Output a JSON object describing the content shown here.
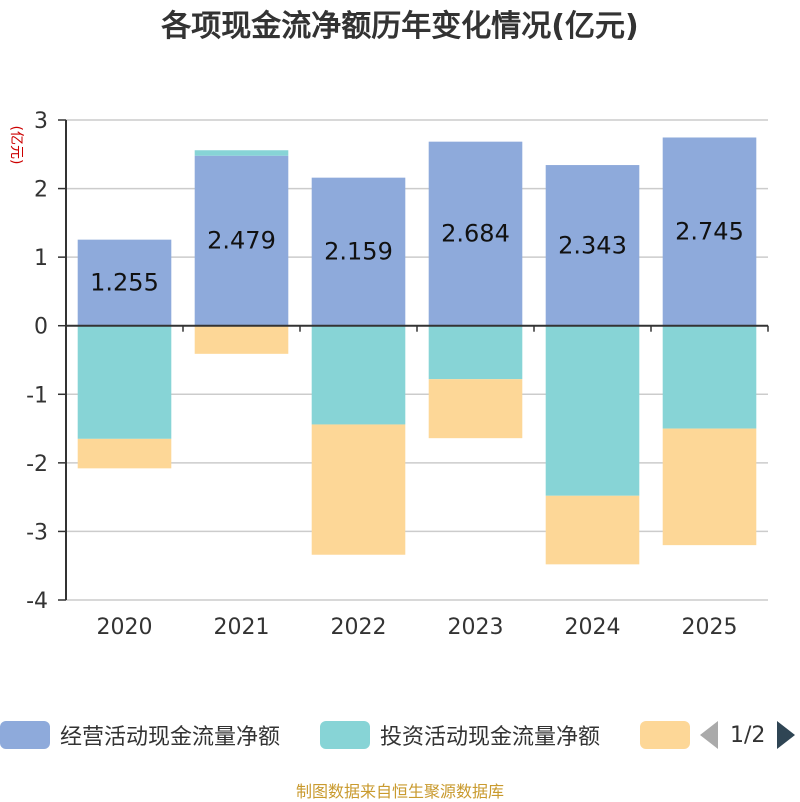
{
  "title": "各项现金流净额历年变化情况(亿元)",
  "chart_data": {
    "type": "bar",
    "stacked": true,
    "title": "各项现金流净额历年变化情况(亿元)",
    "ylabel": "(亿元)",
    "xlabel": "",
    "ylim": [
      -4,
      3
    ],
    "yticks": [
      3,
      2,
      1,
      0,
      -1,
      -2,
      -3,
      -4
    ],
    "categories": [
      "2020",
      "2021",
      "2022",
      "2023",
      "2024",
      "2025"
    ],
    "series": [
      {
        "name": "经营活动现金流量净额",
        "color": "#8eaadb",
        "values": [
          1.255,
          2.479,
          2.159,
          2.684,
          2.343,
          2.745
        ],
        "labels": [
          "1.255",
          "2.479",
          "2.159",
          "2.684",
          "2.343",
          "2.745"
        ]
      },
      {
        "name": "投资活动现金流量净额",
        "color": "#87d4d6",
        "values": [
          -1.65,
          0.08,
          -1.44,
          -0.78,
          -2.48,
          -1.5
        ]
      },
      {
        "name": "",
        "color": "#fdd797",
        "values": [
          -0.43,
          -0.41,
          -1.9,
          -0.86,
          -1.0,
          -1.7
        ]
      }
    ],
    "legend_position": "bottom"
  },
  "legend": {
    "items": [
      {
        "label": "经营活动现金流量净额",
        "color": "#8eaadb"
      },
      {
        "label": "投资活动现金流量净额",
        "color": "#87d4d6"
      },
      {
        "label": "",
        "color": "#fdd797"
      }
    ],
    "page": "1/2"
  },
  "source": "制图数据来自恒生聚源数据库"
}
